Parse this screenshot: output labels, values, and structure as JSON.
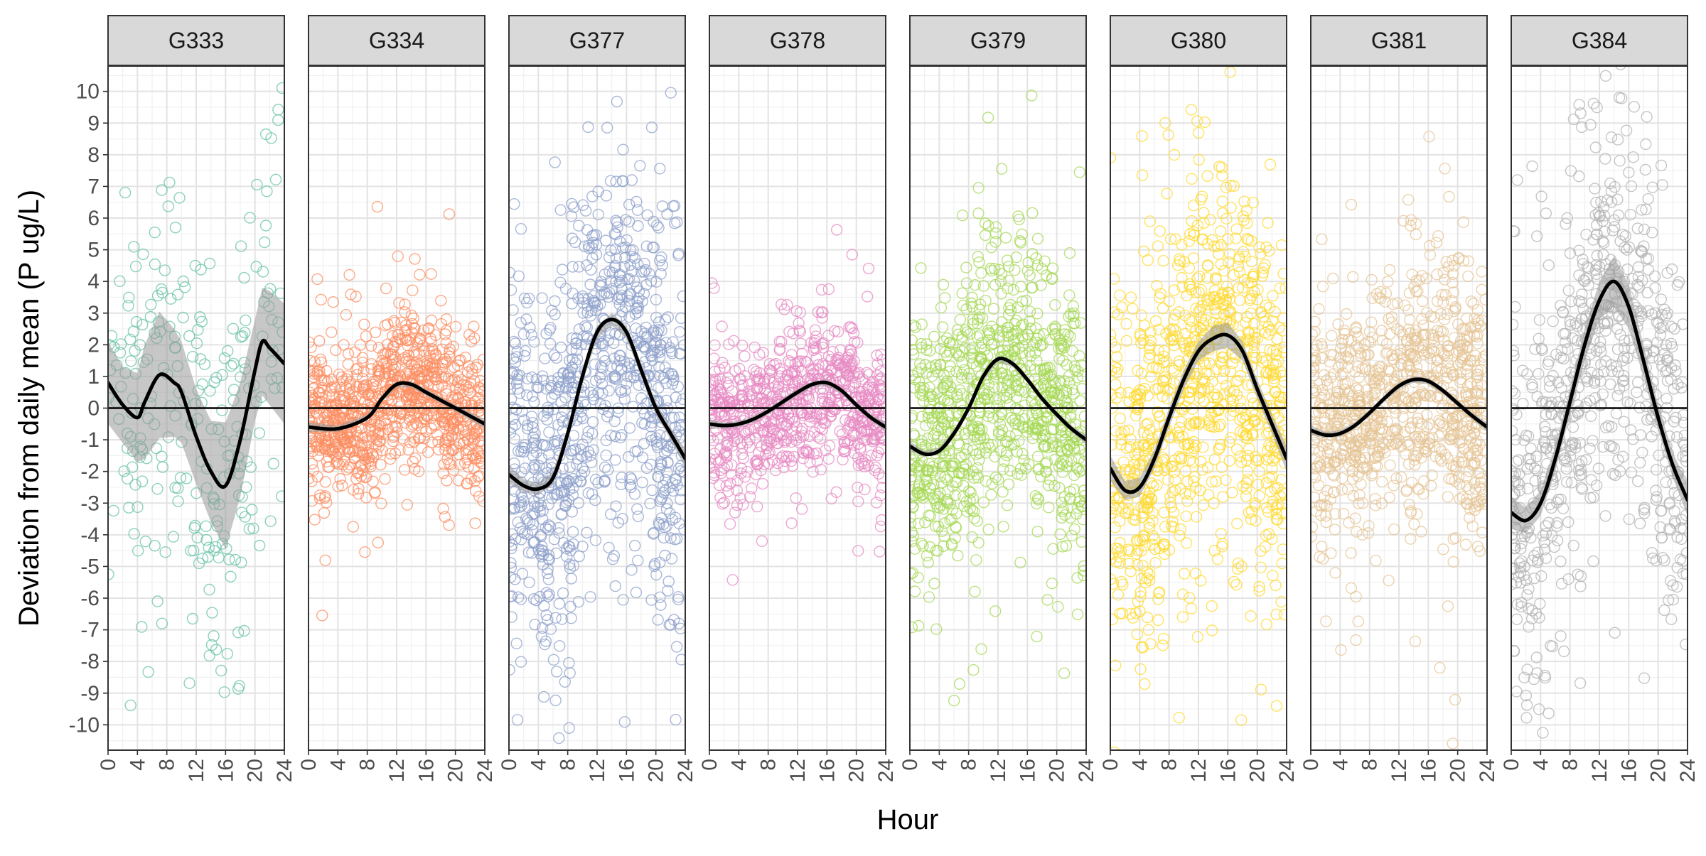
{
  "chart_data": {
    "type": "scatter",
    "layout": "faceted small multiples, one panel per site, shared y axis",
    "xlabel": "Hour",
    "ylabel": "Deviation from daily mean (P ug/L)",
    "xlim": [
      0,
      24
    ],
    "ylim": [
      -10.8,
      10.8
    ],
    "x_ticks": [
      0,
      4,
      8,
      12,
      16,
      20,
      24
    ],
    "y_ticks": [
      -10,
      -9,
      -8,
      -7,
      -6,
      -5,
      -4,
      -3,
      -2,
      -1,
      0,
      1,
      2,
      3,
      4,
      5,
      6,
      7,
      8,
      9,
      10
    ],
    "grid": true,
    "zero_reference_line": 0,
    "smoothing": "black smoothed trend line with grey confidence band",
    "points_note": "hourly observations drawn as hollow circles; values estimated from the figure",
    "facets": [
      {
        "label": "G333",
        "color": "#66C2A5",
        "spread": 4.5,
        "n_points": 260,
        "trend_x": [
          0,
          2,
          4,
          5,
          7,
          9,
          10,
          12,
          14,
          16,
          18,
          20,
          21,
          22,
          24
        ],
        "trend_y": [
          0.8,
          0.1,
          -0.3,
          0.2,
          1.05,
          0.8,
          0.5,
          -0.9,
          -2.0,
          -2.45,
          -1.0,
          1.2,
          2.1,
          1.9,
          1.4
        ],
        "band_halfwidth": [
          1.3,
          1.2,
          1.4,
          1.8,
          2.0,
          1.7,
          1.6,
          1.5,
          1.6,
          2.0,
          1.8,
          1.6,
          1.7,
          1.8,
          1.9
        ]
      },
      {
        "label": "G334",
        "color": "#FC8D62",
        "spread": 1.6,
        "n_points": 900,
        "trend_x": [
          0,
          4,
          8,
          10,
          12,
          14,
          16,
          20,
          24
        ],
        "trend_y": [
          -0.6,
          -0.65,
          -0.3,
          0.3,
          0.75,
          0.75,
          0.5,
          0.0,
          -0.5
        ],
        "band_halfwidth": [
          0.15,
          0.1,
          0.1,
          0.1,
          0.1,
          0.1,
          0.1,
          0.1,
          0.15
        ]
      },
      {
        "label": "G377",
        "color": "#8DA0CB",
        "spread": 4.0,
        "n_points": 900,
        "trend_x": [
          0,
          2,
          4,
          6,
          8,
          10,
          12,
          14,
          16,
          18,
          20,
          22,
          24
        ],
        "trend_y": [
          -2.1,
          -2.45,
          -2.55,
          -2.2,
          -0.8,
          1.0,
          2.4,
          2.8,
          2.4,
          1.2,
          0.0,
          -0.8,
          -1.6
        ],
        "band_halfwidth": [
          0.3,
          0.2,
          0.2,
          0.2,
          0.2,
          0.2,
          0.2,
          0.2,
          0.2,
          0.2,
          0.2,
          0.2,
          0.3
        ]
      },
      {
        "label": "G378",
        "color": "#E78AC3",
        "spread": 1.5,
        "n_points": 750,
        "trend_x": [
          0,
          2,
          4,
          6,
          8,
          10,
          12,
          14,
          16,
          18,
          20,
          22,
          24
        ],
        "trend_y": [
          -0.5,
          -0.55,
          -0.5,
          -0.35,
          -0.1,
          0.2,
          0.5,
          0.75,
          0.8,
          0.55,
          0.1,
          -0.3,
          -0.6
        ],
        "band_halfwidth": [
          0.15,
          0.1,
          0.1,
          0.1,
          0.1,
          0.1,
          0.1,
          0.1,
          0.1,
          0.1,
          0.1,
          0.1,
          0.15
        ]
      },
      {
        "label": "G379",
        "color": "#A6D854",
        "spread": 2.8,
        "n_points": 900,
        "trend_x": [
          0,
          2,
          4,
          6,
          8,
          10,
          12,
          14,
          16,
          18,
          20,
          22,
          24
        ],
        "trend_y": [
          -1.2,
          -1.45,
          -1.35,
          -0.8,
          0.0,
          1.0,
          1.55,
          1.4,
          0.9,
          0.3,
          -0.2,
          -0.65,
          -1.0
        ],
        "band_halfwidth": [
          0.15,
          0.1,
          0.1,
          0.1,
          0.1,
          0.1,
          0.1,
          0.1,
          0.1,
          0.1,
          0.1,
          0.1,
          0.15
        ]
      },
      {
        "label": "G380",
        "color": "#FFD92F",
        "spread": 3.8,
        "n_points": 900,
        "trend_x": [
          0,
          2,
          4,
          6,
          8,
          10,
          12,
          14,
          16,
          18,
          20,
          22,
          24
        ],
        "trend_y": [
          -1.9,
          -2.6,
          -2.5,
          -1.6,
          -0.3,
          0.9,
          1.8,
          2.2,
          2.3,
          1.8,
          0.6,
          -0.5,
          -1.6
        ],
        "band_halfwidth": [
          0.4,
          0.3,
          0.3,
          0.3,
          0.3,
          0.3,
          0.3,
          0.4,
          0.4,
          0.3,
          0.3,
          0.3,
          0.4
        ]
      },
      {
        "label": "G381",
        "color": "#E5C494",
        "spread": 2.6,
        "n_points": 900,
        "trend_x": [
          0,
          2,
          4,
          6,
          8,
          10,
          12,
          14,
          16,
          18,
          20,
          22,
          24
        ],
        "trend_y": [
          -0.7,
          -0.85,
          -0.8,
          -0.55,
          -0.15,
          0.3,
          0.7,
          0.9,
          0.85,
          0.55,
          0.15,
          -0.25,
          -0.6
        ],
        "band_halfwidth": [
          0.15,
          0.1,
          0.1,
          0.1,
          0.1,
          0.1,
          0.1,
          0.1,
          0.1,
          0.1,
          0.1,
          0.1,
          0.15
        ]
      },
      {
        "label": "G384",
        "color": "#B3B3B3",
        "spread": 4.0,
        "n_points": 700,
        "trend_x": [
          0,
          2,
          4,
          6,
          8,
          10,
          12,
          14,
          16,
          18,
          20,
          22,
          24
        ],
        "trend_y": [
          -3.3,
          -3.55,
          -3.0,
          -1.6,
          0.2,
          2.0,
          3.4,
          4.0,
          3.2,
          1.5,
          -0.3,
          -1.8,
          -2.9
        ],
        "band_halfwidth": [
          0.5,
          0.4,
          0.4,
          0.4,
          0.4,
          0.5,
          0.6,
          0.8,
          0.7,
          0.5,
          0.4,
          0.4,
          0.5
        ]
      }
    ]
  }
}
